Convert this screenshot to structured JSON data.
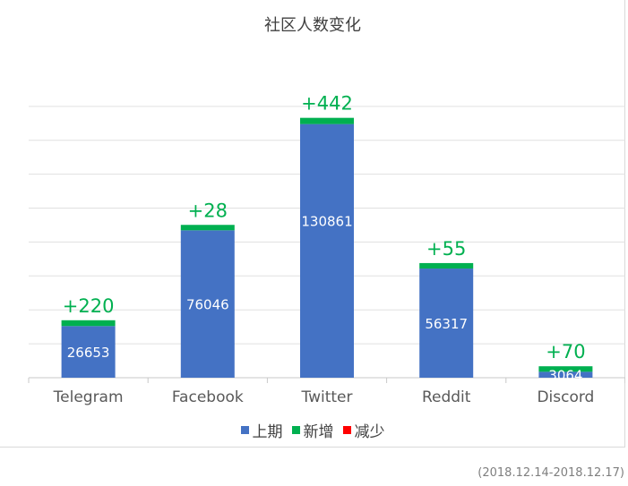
{
  "chart_data": {
    "type": "bar",
    "title": "社区人数变化",
    "categories": [
      "Telegram",
      "Facebook",
      "Twitter",
      "Reddit",
      "Discord"
    ],
    "series": [
      {
        "name": "上期",
        "color": "#4472c4",
        "values": [
          26653,
          76046,
          130861,
          56317,
          3064
        ]
      },
      {
        "name": "新增",
        "color": "#00b050",
        "values": [
          220,
          28,
          442,
          55,
          70
        ]
      },
      {
        "name": "减少",
        "color": "#ff0000",
        "values": [
          0,
          0,
          0,
          0,
          0
        ]
      }
    ],
    "increase_labels": [
      "+220",
      "+28",
      "+442",
      "+55",
      "+70"
    ],
    "stacked": true,
    "grid": true,
    "legend_position": "bottom",
    "ylim": [
      0,
      140000
    ]
  },
  "footnote": "(2018.12.14-2018.12.17)"
}
